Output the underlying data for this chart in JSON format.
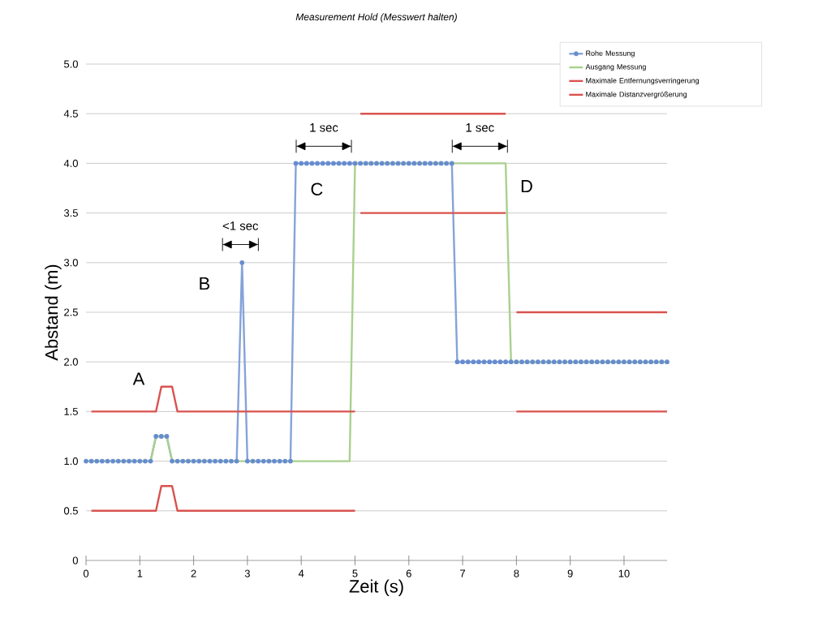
{
  "chart_data": {
    "type": "line",
    "title": "Measurement Hold (Messwert halten)",
    "xlabel": "Zeit (s)",
    "ylabel": "Abstand (m)",
    "xlim": [
      0,
      10.8
    ],
    "ylim": [
      0,
      5
    ],
    "xticks": [
      0,
      1,
      2,
      3,
      4,
      5,
      6,
      7,
      8,
      9,
      10
    ],
    "yticks": [
      0,
      {
        "value": 0.5,
        "label": "0.5"
      },
      {
        "value": 1,
        "label": "1.0"
      },
      {
        "value": 1.5,
        "label": "1.5"
      },
      {
        "value": 2,
        "label": "2.0"
      },
      {
        "value": 2.5,
        "label": "2.5"
      },
      {
        "value": 3,
        "label": "3.0"
      },
      {
        "value": 3.5,
        "label": "3.5"
      },
      {
        "value": 4,
        "label": "4.0"
      },
      {
        "value": 4.5,
        "label": "4.5"
      },
      {
        "value": 5,
        "label": "5.0"
      }
    ],
    "grid": "y",
    "legend": "top right",
    "line_style": "solid",
    "series": [
      {
        "name": "Rohe Messung",
        "color": "#4472c4",
        "marker": "circle",
        "x": [
          0.0,
          0.1,
          0.2,
          0.3,
          0.4,
          0.5,
          0.6,
          0.7,
          0.8,
          0.9,
          1.0,
          1.1,
          1.2,
          1.3,
          1.4,
          1.5,
          1.6,
          1.7,
          1.8,
          1.9,
          2.0,
          2.1,
          2.2,
          2.3,
          2.4,
          2.5,
          2.6,
          2.7,
          2.8,
          2.9,
          3.0,
          3.1,
          3.2,
          3.3,
          3.4,
          3.5,
          3.6,
          3.7,
          3.8,
          3.9,
          4.0,
          4.1,
          4.2,
          4.3,
          4.4,
          4.5,
          4.6,
          4.7,
          4.8,
          4.9,
          5.0,
          5.1,
          5.2,
          5.3,
          5.4,
          5.5,
          5.6,
          5.7,
          5.8,
          5.9,
          6.0,
          6.1,
          6.2,
          6.3,
          6.4,
          6.5,
          6.6,
          6.7,
          6.8,
          6.9,
          7.0,
          7.1,
          7.2,
          7.3,
          7.4,
          7.5,
          7.6,
          7.7,
          7.8,
          7.9,
          8.0,
          8.1,
          8.2,
          8.3,
          8.4,
          8.5,
          8.6,
          8.7,
          8.8,
          8.9,
          9.0,
          9.1,
          9.2,
          9.3,
          9.4,
          9.5,
          9.6,
          9.7,
          9.8,
          9.9,
          10.0,
          10.1,
          10.2,
          10.3,
          10.4,
          10.5,
          10.6,
          10.7,
          10.8
        ],
        "values": [
          1,
          1,
          1,
          1,
          1,
          1,
          1,
          1,
          1,
          1,
          1,
          1,
          1,
          1.25,
          1.25,
          1.25,
          1,
          1,
          1,
          1,
          1,
          1,
          1,
          1,
          1,
          1,
          1,
          1,
          1,
          3,
          1,
          1,
          1,
          1,
          1,
          1,
          1,
          1,
          1,
          4,
          4,
          4,
          4,
          4,
          4,
          4,
          4,
          4,
          4,
          4,
          4,
          4,
          4,
          4,
          4,
          4,
          4,
          4,
          4,
          4,
          4,
          4,
          4,
          4,
          4,
          4,
          4,
          4,
          4,
          2,
          2,
          2,
          2,
          2,
          2,
          2,
          2,
          2,
          2,
          2,
          2,
          2,
          2,
          2,
          2,
          2,
          2,
          2,
          2,
          2,
          2,
          2,
          2,
          2,
          2,
          2,
          2,
          2,
          2,
          2,
          2,
          2,
          2,
          2,
          2,
          2,
          2,
          2,
          2
        ]
      },
      {
        "name": "Ausgang Messung",
        "color": "#a9d18e",
        "marker": "none",
        "x": [
          0,
          1.2,
          1.3,
          1.5,
          1.6,
          4.9,
          5.0,
          7.8,
          7.9,
          10.8
        ],
        "values": [
          1,
          1,
          1.25,
          1.25,
          1,
          1,
          4,
          4,
          2,
          2
        ]
      },
      {
        "name": "Maximale Entfernungsverringerung",
        "color": "#d9534f",
        "marker": "none",
        "x": [
          0.1,
          1.3,
          1.4,
          1.6,
          1.7,
          5.0,
          5.05,
          5.1,
          7.8,
          7.9,
          8.0,
          10.8
        ],
        "values": [
          0.5,
          0.5,
          0.75,
          0.75,
          0.5,
          0.5,
          null,
          3.5,
          3.5,
          null,
          1.5,
          1.5
        ]
      },
      {
        "name": "Maximale Distanzvergrößerung",
        "color": "#d9534f",
        "marker": "none",
        "x": [
          0.1,
          1.3,
          1.4,
          1.6,
          1.7,
          5.0,
          5.05,
          5.1,
          7.8,
          7.9,
          8.0,
          10.8
        ],
        "values": [
          1.5,
          1.5,
          1.75,
          1.75,
          1.5,
          1.5,
          null,
          4.5,
          4.5,
          null,
          2.5,
          2.5
        ]
      }
    ],
    "annotations": [
      "A",
      "B",
      "C",
      "D",
      "<1 sec",
      "1 sec",
      "1 sec"
    ]
  }
}
